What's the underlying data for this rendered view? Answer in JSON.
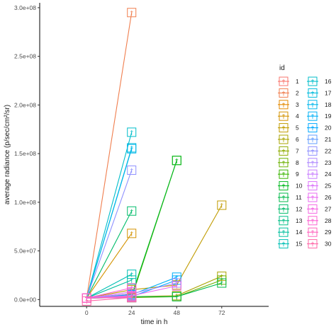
{
  "chart_data": {
    "type": "line",
    "xlabel": "time in h",
    "ylabel": "average radiance (p/sec/cm²/sr)",
    "x_ticks": [
      0,
      24,
      48,
      72
    ],
    "x_tick_labels": [
      "0",
      "24",
      "48",
      "72"
    ],
    "xlim": [
      -25,
      97
    ],
    "y_ticks": [
      0,
      50000000,
      100000000,
      150000000,
      200000000,
      250000000,
      300000000
    ],
    "y_tick_labels": [
      "0.0e+00",
      "5.0e+07",
      "1.0e+08",
      "1.5e+08",
      "2.0e+08",
      "2.5e+08",
      "3.0e+08"
    ],
    "ylim": [
      -7000000,
      305000000
    ],
    "grid": false,
    "legend": {
      "title": "id",
      "position": "right",
      "columns": 2,
      "entries": [
        "1",
        "2",
        "3",
        "4",
        "5",
        "6",
        "7",
        "8",
        "9",
        "10",
        "11",
        "12",
        "13",
        "14",
        "15",
        "16",
        "17",
        "18",
        "19",
        "20",
        "21",
        "22",
        "23",
        "24",
        "25",
        "26",
        "27",
        "28",
        "29",
        "30"
      ]
    },
    "marker": "†",
    "series": [
      {
        "name": "1",
        "color": "#F8766D",
        "points": [
          [
            0,
            1500000
          ],
          [
            24,
            5000000
          ]
        ]
      },
      {
        "name": "2",
        "color": "#F07E4E",
        "points": [
          [
            0,
            1500000
          ],
          [
            24,
            295000000
          ]
        ]
      },
      {
        "name": "3",
        "color": "#E38900",
        "points": [
          [
            0,
            1500000
          ],
          [
            24,
            3000000
          ]
        ]
      },
      {
        "name": "4",
        "color": "#D39200",
        "points": [
          [
            0,
            1500000
          ],
          [
            24,
            68000000
          ]
        ]
      },
      {
        "name": "5",
        "color": "#C09B00",
        "points": [
          [
            0,
            1500000
          ],
          [
            24,
            10000000
          ],
          [
            48,
            15000000
          ],
          [
            72,
            97000000
          ]
        ]
      },
      {
        "name": "6",
        "color": "#A9A400",
        "points": [
          [
            0,
            1500000
          ],
          [
            24,
            3000000
          ],
          [
            48,
            4000000
          ],
          [
            72,
            24000000
          ]
        ]
      },
      {
        "name": "7",
        "color": "#8EAB00",
        "points": [
          [
            0,
            1500000
          ],
          [
            24,
            6000000
          ]
        ]
      },
      {
        "name": "8",
        "color": "#6BB100",
        "points": [
          [
            0,
            1500000
          ],
          [
            24,
            2000000
          ],
          [
            48,
            3000000
          ],
          [
            72,
            20000000
          ]
        ]
      },
      {
        "name": "9",
        "color": "#3AB500",
        "points": [
          [
            0,
            1500000
          ],
          [
            24,
            2000000
          ],
          [
            48,
            143000000
          ]
        ]
      },
      {
        "name": "10",
        "color": "#00B81F",
        "points": [
          [
            0,
            1500000
          ],
          [
            24,
            4000000
          ],
          [
            48,
            143000000
          ]
        ]
      },
      {
        "name": "11",
        "color": "#00BA4A",
        "points": [
          [
            0,
            1500000
          ],
          [
            24,
            3000000
          ],
          [
            48,
            3000000
          ],
          [
            72,
            17000000
          ]
        ]
      },
      {
        "name": "12",
        "color": "#00BC6A",
        "points": [
          [
            0,
            1500000
          ],
          [
            24,
            91000000
          ]
        ]
      },
      {
        "name": "13",
        "color": "#00BE85",
        "points": [
          [
            0,
            1500000
          ],
          [
            24,
            2000000
          ]
        ]
      },
      {
        "name": "14",
        "color": "#00BF9E",
        "points": [
          [
            0,
            1500000
          ],
          [
            24,
            20000000
          ]
        ]
      },
      {
        "name": "15",
        "color": "#00BFB4",
        "points": [
          [
            0,
            1500000
          ],
          [
            24,
            26000000
          ]
        ]
      },
      {
        "name": "16",
        "color": "#00BECA",
        "points": [
          [
            0,
            1500000
          ],
          [
            24,
            172000000
          ]
        ]
      },
      {
        "name": "17",
        "color": "#00BBDC",
        "points": [
          [
            0,
            1500000
          ],
          [
            24,
            156000000
          ]
        ]
      },
      {
        "name": "18",
        "color": "#00B6EB",
        "points": [
          [
            0,
            1500000
          ],
          [
            24,
            155000000
          ]
        ]
      },
      {
        "name": "19",
        "color": "#00B0F6",
        "points": [
          [
            0,
            1500000
          ],
          [
            24,
            5000000
          ],
          [
            48,
            23000000
          ]
        ]
      },
      {
        "name": "20",
        "color": "#00A9FF",
        "points": [
          [
            0,
            1500000
          ],
          [
            24,
            3000000
          ],
          [
            48,
            20000000
          ]
        ]
      },
      {
        "name": "21",
        "color": "#619CFF",
        "points": [
          [
            0,
            1500000
          ],
          [
            24,
            4000000
          ]
        ]
      },
      {
        "name": "22",
        "color": "#8F91FF",
        "points": [
          [
            0,
            1500000
          ],
          [
            24,
            133000000
          ]
        ]
      },
      {
        "name": "23",
        "color": "#AE87FF",
        "points": [
          [
            0,
            1500000
          ],
          [
            24,
            6000000
          ],
          [
            48,
            17000000
          ]
        ]
      },
      {
        "name": "24",
        "color": "#C77CFF",
        "points": [
          [
            0,
            1500000
          ],
          [
            24,
            3000000
          ]
        ]
      },
      {
        "name": "25",
        "color": "#DB72FB",
        "points": [
          [
            0,
            1500000
          ],
          [
            24,
            8000000
          ]
        ]
      },
      {
        "name": "26",
        "color": "#EA6AF1",
        "points": [
          [
            0,
            1500000
          ],
          [
            24,
            4000000
          ],
          [
            48,
            14000000
          ]
        ]
      },
      {
        "name": "27",
        "color": "#F564E3",
        "points": [
          [
            0,
            1500000
          ],
          [
            24,
            2000000
          ]
        ]
      },
      {
        "name": "28",
        "color": "#FC61D2",
        "points": [
          [
            0,
            1500000
          ],
          [
            24,
            12000000
          ]
        ]
      },
      {
        "name": "29",
        "color": "#FF63BE",
        "points": [
          [
            0,
            1500000
          ],
          [
            24,
            3000000
          ]
        ]
      },
      {
        "name": "30",
        "color": "#FF67A7",
        "points": [
          [
            0,
            -1500000
          ],
          [
            24,
            2000000
          ]
        ]
      }
    ]
  }
}
